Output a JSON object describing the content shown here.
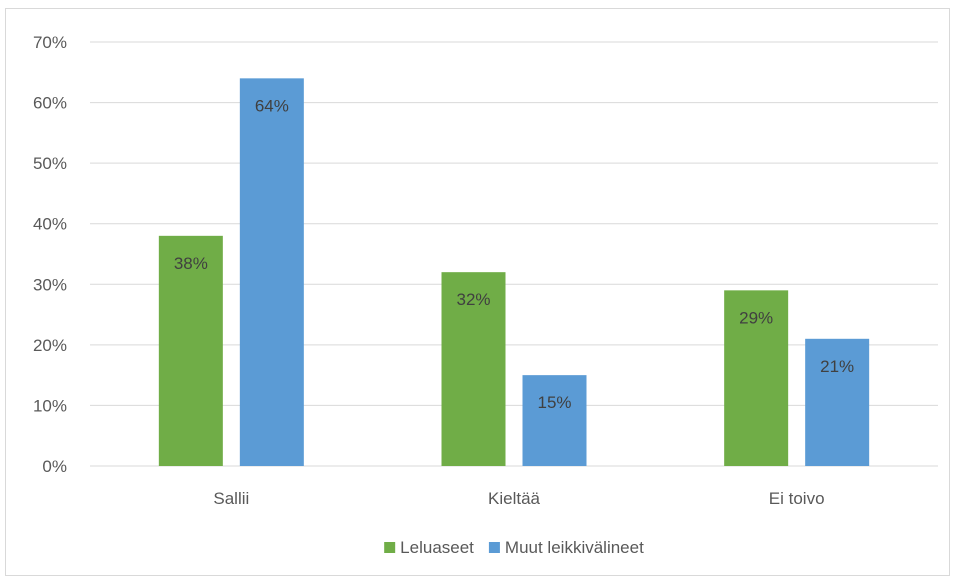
{
  "colors": {
    "series_1": "#70ad47",
    "series_2": "#5b9bd5",
    "gridline": "#d9d9d9",
    "axis_text": "#595959",
    "data_label": "#404040"
  },
  "chart_data": {
    "type": "bar",
    "categories": [
      "Sallii",
      "Kieltää",
      "Ei toivo"
    ],
    "series": [
      {
        "name": "Leluaseet",
        "values": [
          38,
          32,
          29
        ],
        "labels": [
          "38%",
          "32%",
          "29%"
        ]
      },
      {
        "name": "Muut leikkivälineet",
        "values": [
          64,
          15,
          21
        ],
        "labels": [
          "64%",
          "15%",
          "21%"
        ]
      }
    ],
    "y_ticks": [
      {
        "value": 0,
        "label": "0%"
      },
      {
        "value": 10,
        "label": "10%"
      },
      {
        "value": 20,
        "label": "20%"
      },
      {
        "value": 30,
        "label": "30%"
      },
      {
        "value": 40,
        "label": "40%"
      },
      {
        "value": 50,
        "label": "50%"
      },
      {
        "value": 60,
        "label": "60%"
      },
      {
        "value": 70,
        "label": "70%"
      }
    ],
    "ylim": [
      0,
      70
    ],
    "grid": true,
    "legend_position": "bottom",
    "title": "",
    "xlabel": "",
    "ylabel": ""
  }
}
